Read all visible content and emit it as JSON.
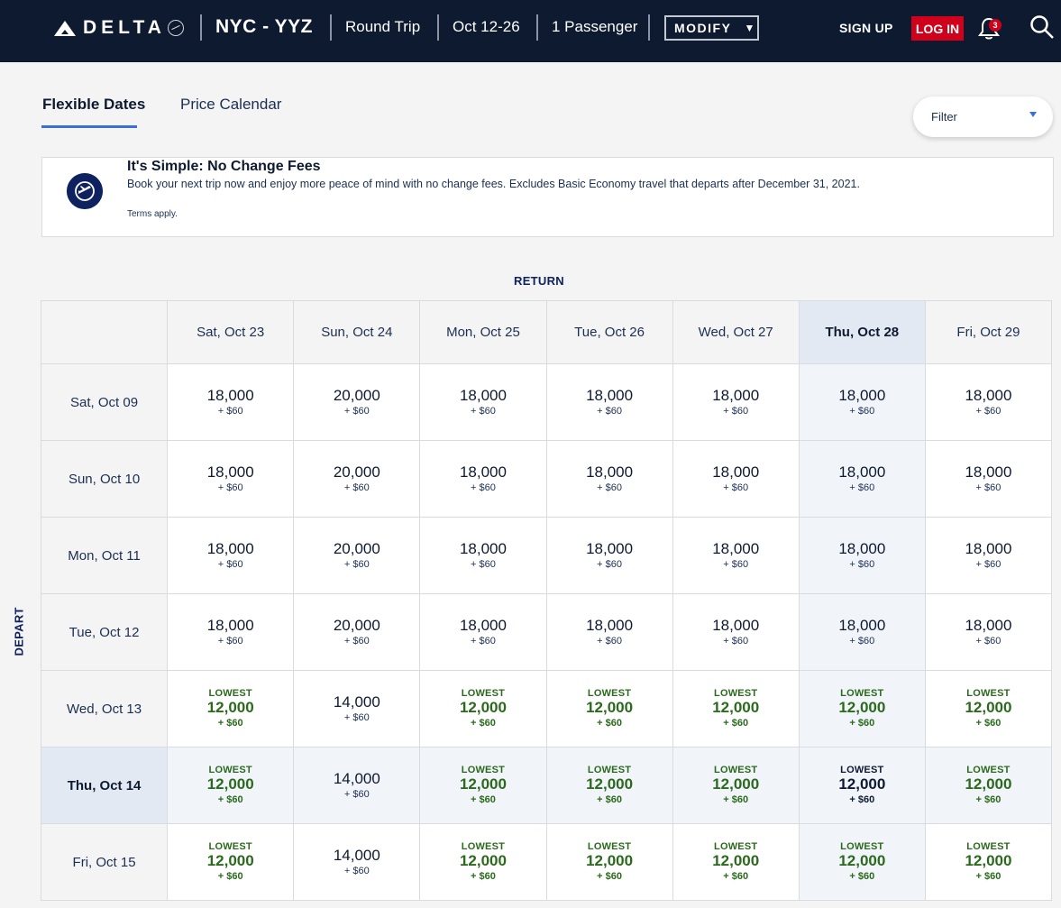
{
  "header": {
    "brand": "DELTA",
    "route": "NYC - YYZ",
    "trip_type": "Round Trip",
    "dates": "Oct 12-26",
    "passengers": "1 Passenger",
    "modify_label": "MODIFY",
    "signup_label": "SIGN UP",
    "login_label": "LOG IN",
    "notification_count": "3"
  },
  "tabs": [
    {
      "label": "Flexible Dates",
      "active": true
    },
    {
      "label": "Price Calendar",
      "active": false
    }
  ],
  "filter": {
    "label": "Filter"
  },
  "banner": {
    "title": "It's Simple: No Change Fees",
    "body": "Book your next trip now and enjoy more peace of mind with no change fees. Excludes Basic Economy travel that departs after December 31, 2021.",
    "terms": "Terms apply."
  },
  "grid": {
    "return_label": "RETURN",
    "depart_label": "DEPART",
    "lowest_label": "LOWEST",
    "return_dates": [
      "Sat, Oct 23",
      "Sun, Oct 24",
      "Mon, Oct 25",
      "Tue, Oct 26",
      "Wed, Oct 27",
      "Thu, Oct 28",
      "Fri, Oct 29"
    ],
    "selected_return_index": 5,
    "selected_depart_index": 5,
    "rows": [
      {
        "depart": "Sat, Oct 09",
        "cells": [
          {
            "points": "18,000",
            "fee": "+ $60",
            "lowest": false
          },
          {
            "points": "20,000",
            "fee": "+ $60",
            "lowest": false
          },
          {
            "points": "18,000",
            "fee": "+ $60",
            "lowest": false
          },
          {
            "points": "18,000",
            "fee": "+ $60",
            "lowest": false
          },
          {
            "points": "18,000",
            "fee": "+ $60",
            "lowest": false
          },
          {
            "points": "18,000",
            "fee": "+ $60",
            "lowest": false
          },
          {
            "points": "18,000",
            "fee": "+ $60",
            "lowest": false
          }
        ]
      },
      {
        "depart": "Sun, Oct 10",
        "cells": [
          {
            "points": "18,000",
            "fee": "+ $60",
            "lowest": false
          },
          {
            "points": "20,000",
            "fee": "+ $60",
            "lowest": false
          },
          {
            "points": "18,000",
            "fee": "+ $60",
            "lowest": false
          },
          {
            "points": "18,000",
            "fee": "+ $60",
            "lowest": false
          },
          {
            "points": "18,000",
            "fee": "+ $60",
            "lowest": false
          },
          {
            "points": "18,000",
            "fee": "+ $60",
            "lowest": false
          },
          {
            "points": "18,000",
            "fee": "+ $60",
            "lowest": false
          }
        ]
      },
      {
        "depart": "Mon, Oct 11",
        "cells": [
          {
            "points": "18,000",
            "fee": "+ $60",
            "lowest": false
          },
          {
            "points": "20,000",
            "fee": "+ $60",
            "lowest": false
          },
          {
            "points": "18,000",
            "fee": "+ $60",
            "lowest": false
          },
          {
            "points": "18,000",
            "fee": "+ $60",
            "lowest": false
          },
          {
            "points": "18,000",
            "fee": "+ $60",
            "lowest": false
          },
          {
            "points": "18,000",
            "fee": "+ $60",
            "lowest": false
          },
          {
            "points": "18,000",
            "fee": "+ $60",
            "lowest": false
          }
        ]
      },
      {
        "depart": "Tue, Oct 12",
        "cells": [
          {
            "points": "18,000",
            "fee": "+ $60",
            "lowest": false
          },
          {
            "points": "20,000",
            "fee": "+ $60",
            "lowest": false
          },
          {
            "points": "18,000",
            "fee": "+ $60",
            "lowest": false
          },
          {
            "points": "18,000",
            "fee": "+ $60",
            "lowest": false
          },
          {
            "points": "18,000",
            "fee": "+ $60",
            "lowest": false
          },
          {
            "points": "18,000",
            "fee": "+ $60",
            "lowest": false
          },
          {
            "points": "18,000",
            "fee": "+ $60",
            "lowest": false
          }
        ]
      },
      {
        "depart": "Wed, Oct 13",
        "cells": [
          {
            "points": "12,000",
            "fee": "+ $60",
            "lowest": true
          },
          {
            "points": "14,000",
            "fee": "+ $60",
            "lowest": false
          },
          {
            "points": "12,000",
            "fee": "+ $60",
            "lowest": true
          },
          {
            "points": "12,000",
            "fee": "+ $60",
            "lowest": true
          },
          {
            "points": "12,000",
            "fee": "+ $60",
            "lowest": true
          },
          {
            "points": "12,000",
            "fee": "+ $60",
            "lowest": true
          },
          {
            "points": "12,000",
            "fee": "+ $60",
            "lowest": true
          }
        ]
      },
      {
        "depart": "Thu, Oct 14",
        "cells": [
          {
            "points": "12,000",
            "fee": "+ $60",
            "lowest": true
          },
          {
            "points": "14,000",
            "fee": "+ $60",
            "lowest": false
          },
          {
            "points": "12,000",
            "fee": "+ $60",
            "lowest": true
          },
          {
            "points": "12,000",
            "fee": "+ $60",
            "lowest": true
          },
          {
            "points": "12,000",
            "fee": "+ $60",
            "lowest": true
          },
          {
            "points": "12,000",
            "fee": "+ $60",
            "lowest": true
          },
          {
            "points": "12,000",
            "fee": "+ $60",
            "lowest": true
          }
        ]
      },
      {
        "depart": "Fri, Oct 15",
        "cells": [
          {
            "points": "12,000",
            "fee": "+ $60",
            "lowest": true
          },
          {
            "points": "14,000",
            "fee": "+ $60",
            "lowest": false
          },
          {
            "points": "12,000",
            "fee": "+ $60",
            "lowest": true
          },
          {
            "points": "12,000",
            "fee": "+ $60",
            "lowest": true
          },
          {
            "points": "12,000",
            "fee": "+ $60",
            "lowest": true
          },
          {
            "points": "12,000",
            "fee": "+ $60",
            "lowest": true
          },
          {
            "points": "12,000",
            "fee": "+ $60",
            "lowest": true
          }
        ]
      }
    ]
  }
}
